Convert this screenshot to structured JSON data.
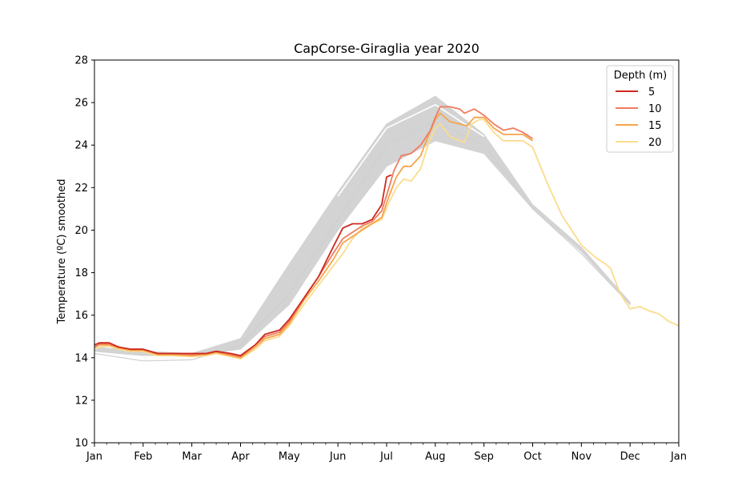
{
  "chart_data": {
    "type": "line",
    "title": "CapCorse-Giraglia year 2020",
    "xlabel": "",
    "ylabel": "Temperature (ºC) smoothed",
    "ylim": [
      10,
      28
    ],
    "yticks": [
      10,
      12,
      14,
      16,
      18,
      20,
      22,
      24,
      26,
      28
    ],
    "xlim": [
      0,
      12
    ],
    "xticks": [
      "Jan",
      "Feb",
      "Mar",
      "Apr",
      "May",
      "Jun",
      "Jul",
      "Aug",
      "Sep",
      "Oct",
      "Nov",
      "Dec",
      "Jan"
    ],
    "grid": false,
    "legend": {
      "title": "Depth (m)",
      "placement": "top-right"
    },
    "climatology": {
      "band_lower": [
        [
          0,
          14.3
        ],
        [
          1,
          14.1
        ],
        [
          2,
          14.1
        ],
        [
          3,
          14.4
        ],
        [
          4,
          16.5
        ],
        [
          5,
          20.0
        ],
        [
          6,
          23.0
        ],
        [
          7,
          24.2
        ],
        [
          8,
          23.6
        ],
        [
          9,
          21.0
        ],
        [
          10,
          19.0
        ],
        [
          11,
          16.5
        ]
      ],
      "band_upper": [
        [
          0,
          14.5
        ],
        [
          1,
          14.3
        ],
        [
          2,
          14.2
        ],
        [
          3,
          14.9
        ],
        [
          4,
          18.4
        ],
        [
          5,
          21.8
        ],
        [
          6,
          25.0
        ],
        [
          7,
          26.3
        ],
        [
          8,
          24.5
        ],
        [
          9,
          21.2
        ],
        [
          10,
          19.2
        ],
        [
          11,
          16.6
        ]
      ],
      "white_lines": [
        [
          [
            0,
            14.2
          ],
          [
            1,
            13.85
          ],
          [
            2,
            13.9
          ],
          [
            3,
            14.6
          ],
          [
            4,
            17.0
          ],
          [
            5,
            20.5
          ],
          [
            6,
            24.0
          ],
          [
            7,
            25.1
          ],
          [
            8,
            24.0
          ],
          [
            9,
            21.0
          ],
          [
            10,
            18.9
          ],
          [
            11,
            16.5
          ]
        ],
        [
          [
            5,
            21.6
          ],
          [
            6,
            24.8
          ],
          [
            7,
            25.9
          ],
          [
            8,
            24.4
          ]
        ]
      ]
    },
    "series": [
      {
        "name": "5",
        "color": "#cc2a1e",
        "data": [
          [
            0,
            14.6
          ],
          [
            0.1,
            14.7
          ],
          [
            0.3,
            14.7
          ],
          [
            0.5,
            14.5
          ],
          [
            0.75,
            14.4
          ],
          [
            1,
            14.4
          ],
          [
            1.3,
            14.2
          ],
          [
            1.6,
            14.2
          ],
          [
            2,
            14.2
          ],
          [
            2.3,
            14.2
          ],
          [
            2.5,
            14.3
          ],
          [
            2.8,
            14.2
          ],
          [
            3,
            14.1
          ],
          [
            3.3,
            14.6
          ],
          [
            3.5,
            15.1
          ],
          [
            3.8,
            15.3
          ],
          [
            4,
            15.8
          ],
          [
            4.3,
            16.8
          ],
          [
            4.6,
            17.8
          ],
          [
            4.9,
            19.2
          ],
          [
            5.1,
            20.1
          ],
          [
            5.3,
            20.3
          ],
          [
            5.5,
            20.3
          ],
          [
            5.7,
            20.5
          ],
          [
            5.9,
            21.2
          ],
          [
            6.0,
            22.5
          ],
          [
            6.1,
            22.6
          ]
        ]
      },
      {
        "name": "10",
        "color": "#f07c5f",
        "data": [
          [
            0,
            14.5
          ],
          [
            0.1,
            14.65
          ],
          [
            0.3,
            14.65
          ],
          [
            0.5,
            14.5
          ],
          [
            0.75,
            14.4
          ],
          [
            1,
            14.4
          ],
          [
            1.3,
            14.2
          ],
          [
            1.6,
            14.2
          ],
          [
            2,
            14.15
          ],
          [
            2.3,
            14.2
          ],
          [
            2.5,
            14.3
          ],
          [
            2.8,
            14.15
          ],
          [
            3,
            14.05
          ],
          [
            3.3,
            14.6
          ],
          [
            3.5,
            15.0
          ],
          [
            3.8,
            15.2
          ],
          [
            4,
            15.7
          ],
          [
            4.3,
            16.8
          ],
          [
            4.6,
            17.8
          ],
          [
            4.9,
            18.9
          ],
          [
            5.1,
            19.6
          ],
          [
            5.3,
            19.9
          ],
          [
            5.5,
            20.2
          ],
          [
            5.7,
            20.4
          ],
          [
            5.9,
            20.9
          ],
          [
            6.05,
            22.0
          ],
          [
            6.15,
            22.8
          ],
          [
            6.3,
            23.5
          ],
          [
            6.5,
            23.6
          ],
          [
            6.7,
            24.0
          ],
          [
            6.9,
            24.7
          ],
          [
            7.0,
            25.3
          ],
          [
            7.1,
            25.8
          ],
          [
            7.3,
            25.8
          ],
          [
            7.5,
            25.7
          ],
          [
            7.6,
            25.5
          ],
          [
            7.8,
            25.7
          ],
          [
            8.0,
            25.4
          ],
          [
            8.2,
            25.0
          ],
          [
            8.4,
            24.7
          ],
          [
            8.6,
            24.8
          ],
          [
            8.8,
            24.6
          ],
          [
            9.0,
            24.3
          ]
        ]
      },
      {
        "name": "15",
        "color": "#f6a44a",
        "data": [
          [
            0,
            14.5
          ],
          [
            0.1,
            14.6
          ],
          [
            0.3,
            14.6
          ],
          [
            0.5,
            14.45
          ],
          [
            0.75,
            14.35
          ],
          [
            1,
            14.35
          ],
          [
            1.3,
            14.15
          ],
          [
            1.6,
            14.15
          ],
          [
            2,
            14.1
          ],
          [
            2.3,
            14.15
          ],
          [
            2.5,
            14.25
          ],
          [
            2.8,
            14.1
          ],
          [
            3,
            14.0
          ],
          [
            3.3,
            14.5
          ],
          [
            3.5,
            14.9
          ],
          [
            3.8,
            15.1
          ],
          [
            4,
            15.6
          ],
          [
            4.3,
            16.7
          ],
          [
            4.6,
            17.6
          ],
          [
            4.9,
            18.6
          ],
          [
            5.1,
            19.4
          ],
          [
            5.3,
            19.7
          ],
          [
            5.5,
            20.0
          ],
          [
            5.7,
            20.3
          ],
          [
            5.9,
            20.6
          ],
          [
            6.05,
            21.6
          ],
          [
            6.2,
            22.5
          ],
          [
            6.35,
            23.0
          ],
          [
            6.5,
            23.0
          ],
          [
            6.7,
            23.5
          ],
          [
            6.85,
            24.4
          ],
          [
            7.0,
            25.2
          ],
          [
            7.1,
            25.5
          ],
          [
            7.3,
            25.1
          ],
          [
            7.5,
            25.0
          ],
          [
            7.65,
            24.9
          ],
          [
            7.8,
            25.3
          ],
          [
            8.0,
            25.3
          ],
          [
            8.2,
            24.8
          ],
          [
            8.4,
            24.5
          ],
          [
            8.6,
            24.5
          ],
          [
            8.8,
            24.5
          ],
          [
            9.0,
            24.2
          ]
        ]
      },
      {
        "name": "20",
        "color": "#fbdc8c",
        "data": [
          [
            0,
            14.4
          ],
          [
            0.1,
            14.5
          ],
          [
            0.3,
            14.55
          ],
          [
            0.5,
            14.4
          ],
          [
            0.75,
            14.3
          ],
          [
            1,
            14.3
          ],
          [
            1.3,
            14.1
          ],
          [
            1.6,
            14.1
          ],
          [
            2,
            14.05
          ],
          [
            2.3,
            14.1
          ],
          [
            2.5,
            14.2
          ],
          [
            2.8,
            14.05
          ],
          [
            3,
            13.95
          ],
          [
            3.3,
            14.4
          ],
          [
            3.5,
            14.8
          ],
          [
            3.8,
            15.0
          ],
          [
            4,
            15.5
          ],
          [
            4.3,
            16.5
          ],
          [
            4.6,
            17.4
          ],
          [
            4.9,
            18.3
          ],
          [
            5.1,
            18.9
          ],
          [
            5.3,
            19.6
          ],
          [
            5.5,
            20.1
          ],
          [
            5.7,
            20.3
          ],
          [
            5.9,
            20.5
          ],
          [
            6.05,
            21.3
          ],
          [
            6.2,
            22.0
          ],
          [
            6.35,
            22.4
          ],
          [
            6.5,
            22.3
          ],
          [
            6.7,
            22.9
          ],
          [
            6.85,
            24.0
          ],
          [
            7.0,
            24.8
          ],
          [
            7.1,
            25.0
          ],
          [
            7.3,
            24.4
          ],
          [
            7.5,
            24.2
          ],
          [
            7.6,
            24.15
          ],
          [
            7.75,
            25.0
          ],
          [
            7.9,
            25.2
          ],
          [
            8.0,
            25.2
          ],
          [
            8.2,
            24.6
          ],
          [
            8.4,
            24.2
          ],
          [
            8.6,
            24.2
          ],
          [
            8.8,
            24.2
          ],
          [
            9.0,
            23.9
          ],
          [
            9.3,
            22.2
          ],
          [
            9.6,
            20.7
          ],
          [
            10.0,
            19.3
          ],
          [
            10.3,
            18.7
          ],
          [
            10.5,
            18.4
          ],
          [
            10.6,
            18.2
          ],
          [
            10.8,
            17.0
          ],
          [
            11.0,
            16.3
          ],
          [
            11.2,
            16.4
          ],
          [
            11.4,
            16.2
          ],
          [
            11.6,
            16.05
          ],
          [
            11.8,
            15.7
          ],
          [
            12.0,
            15.5
          ]
        ]
      }
    ]
  }
}
